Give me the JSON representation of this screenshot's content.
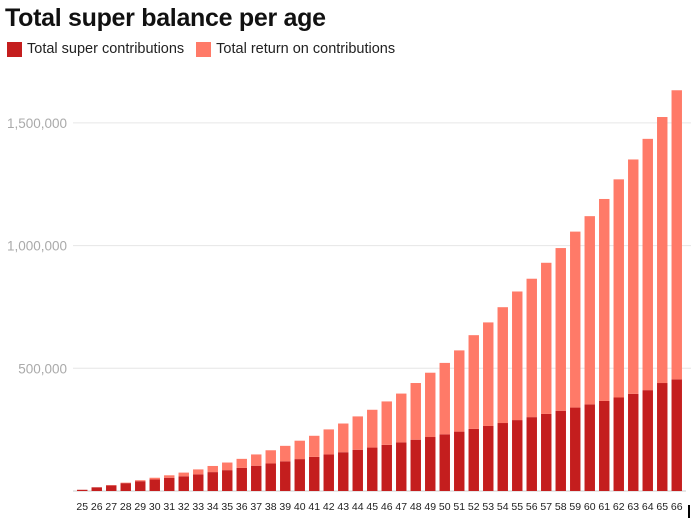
{
  "chart_data": {
    "type": "bar",
    "stacked": true,
    "title": "Total super balance per age",
    "xlabel": "",
    "ylabel": "",
    "ylim": [
      0,
      1650000
    ],
    "yticks": [
      {
        "value": 500000,
        "label": "500,000"
      },
      {
        "value": 1000000,
        "label": "1,000,000"
      },
      {
        "value": 1500000,
        "label": "1,500,000"
      }
    ],
    "grid": true,
    "legend_position": "top-left",
    "categories": [
      "25",
      "26",
      "27",
      "28",
      "29",
      "30",
      "31",
      "32",
      "33",
      "34",
      "35",
      "36",
      "37",
      "38",
      "39",
      "40",
      "41",
      "42",
      "43",
      "44",
      "45",
      "46",
      "47",
      "48",
      "49",
      "50",
      "51",
      "52",
      "53",
      "54",
      "55",
      "56",
      "57",
      "58",
      "59",
      "60",
      "61",
      "62",
      "63",
      "64",
      "65",
      "66"
    ],
    "series": [
      {
        "name": "Total super contributions",
        "color": "#c41e1e",
        "values": [
          5000,
          15000,
          23000,
          32000,
          40000,
          47000,
          54000,
          60000,
          68000,
          77000,
          85000,
          94000,
          103000,
          112000,
          121000,
          130000,
          139000,
          149000,
          158000,
          168000,
          177000,
          188000,
          198000,
          209000,
          220000,
          231000,
          242000,
          253000,
          265000,
          277000,
          289000,
          301000,
          314000,
          327000,
          340000,
          353000,
          367000,
          381000,
          396000,
          411000,
          440000,
          455000
        ]
      },
      {
        "name": "Total return on contributions",
        "color": "#ff7a68",
        "values": [
          0,
          0,
          1000,
          2000,
          4000,
          7000,
          10000,
          15000,
          20000,
          25000,
          31000,
          37000,
          46000,
          54000,
          63000,
          75000,
          86000,
          102000,
          117000,
          136000,
          154000,
          177000,
          199000,
          231000,
          262000,
          291000,
          331000,
          382000,
          422000,
          472000,
          524000,
          564000,
          616000,
          663000,
          717000,
          767000,
          823000,
          889000,
          955000,
          1024000,
          1084000,
          1178000
        ]
      }
    ]
  }
}
